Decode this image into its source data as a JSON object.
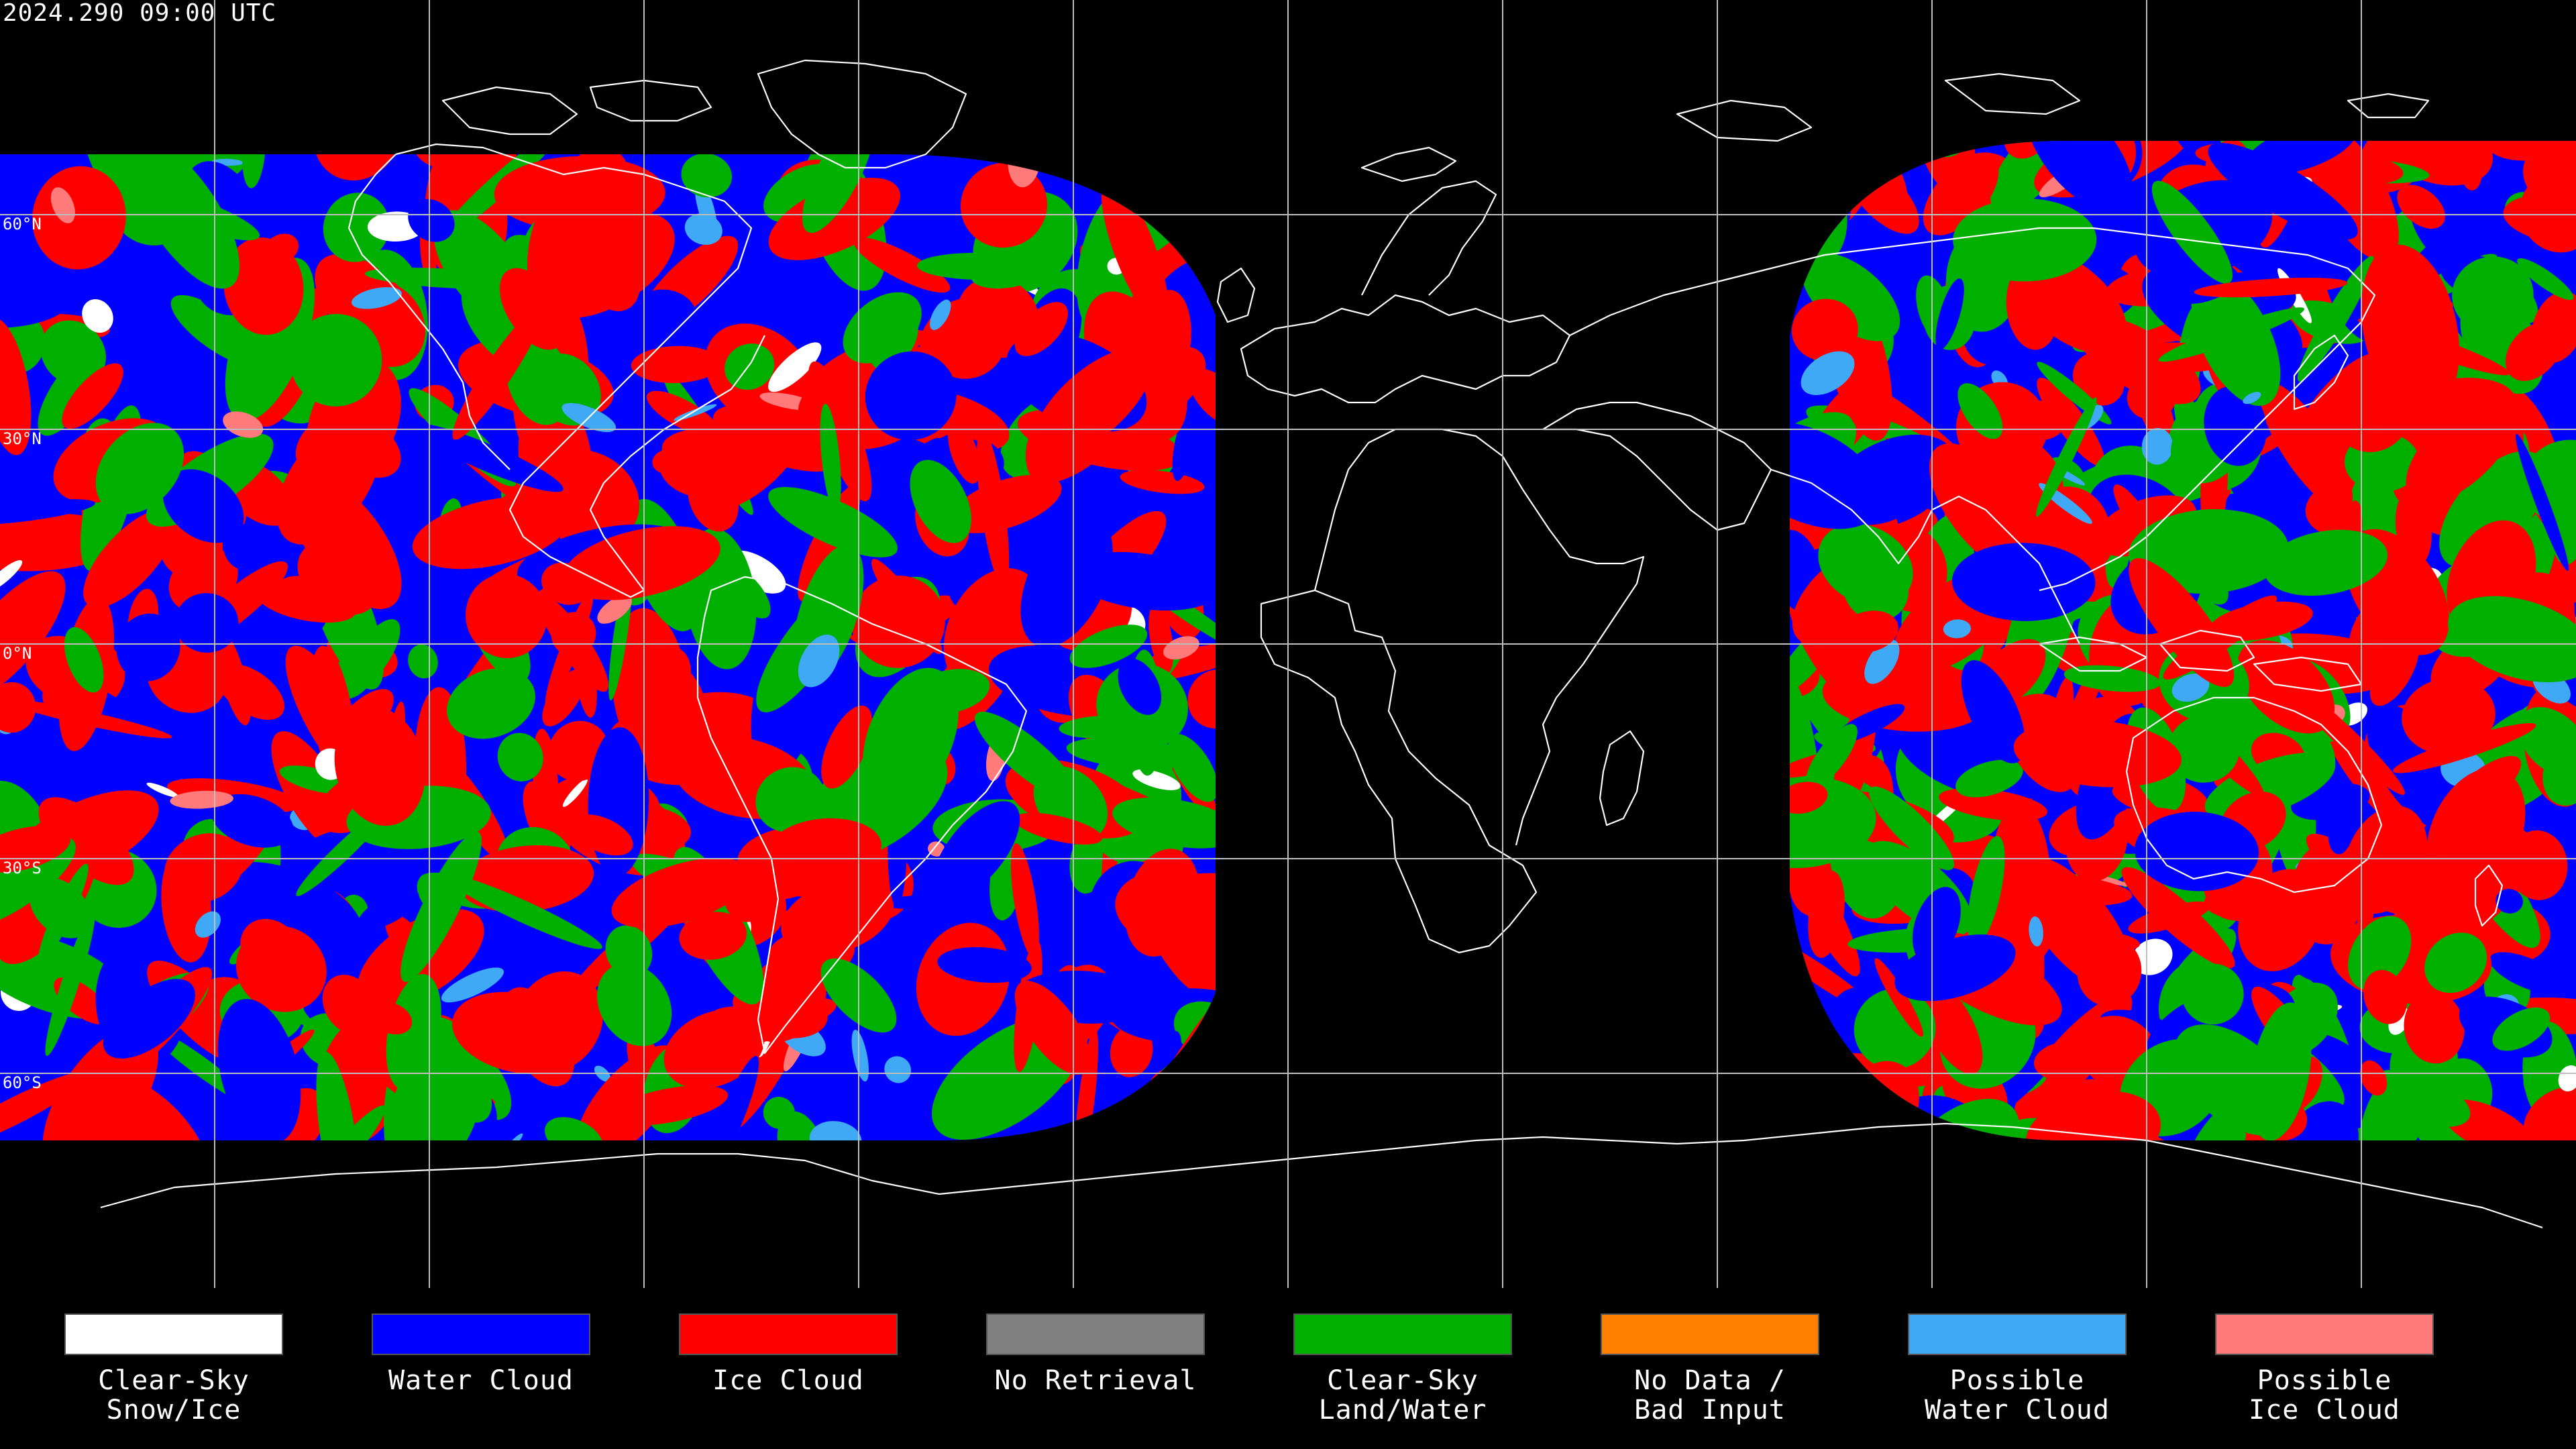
{
  "map": {
    "timestamp": "2024.290 09:00 UTC",
    "latitude_labels": [
      "60°N",
      "30°N",
      "0°N",
      "30°S",
      "60°S"
    ]
  },
  "colors": {
    "clear_sky_snow_ice": "#ffffff",
    "water_cloud": "#0000ff",
    "ice_cloud": "#ff0000",
    "no_retrieval": "#808080",
    "clear_sky_land_water": "#00b000",
    "no_data_bad_input": "#ff8000",
    "possible_water_cloud": "#3fa9f5",
    "possible_ice_cloud": "#ff7a7a",
    "coastline": "#ffffff",
    "gridline": "#bfbfbf",
    "background": "#000000"
  },
  "legend": [
    {
      "line1": "Clear-Sky",
      "line2": "Snow/Ice",
      "color": "#ffffff"
    },
    {
      "line1": "Water Cloud",
      "line2": "",
      "color": "#0000ff"
    },
    {
      "line1": "Ice Cloud",
      "line2": "",
      "color": "#ff0000"
    },
    {
      "line1": "No Retrieval",
      "line2": "",
      "color": "#808080"
    },
    {
      "line1": "Clear-Sky",
      "line2": "Land/Water",
      "color": "#00b000"
    },
    {
      "line1": "No Data /",
      "line2": "Bad Input",
      "color": "#ff8000"
    },
    {
      "line1": "Possible",
      "line2": "Water Cloud",
      "color": "#3fa9f5"
    },
    {
      "line1": "Possible",
      "line2": "Ice Cloud",
      "color": "#ff7a7a"
    }
  ]
}
